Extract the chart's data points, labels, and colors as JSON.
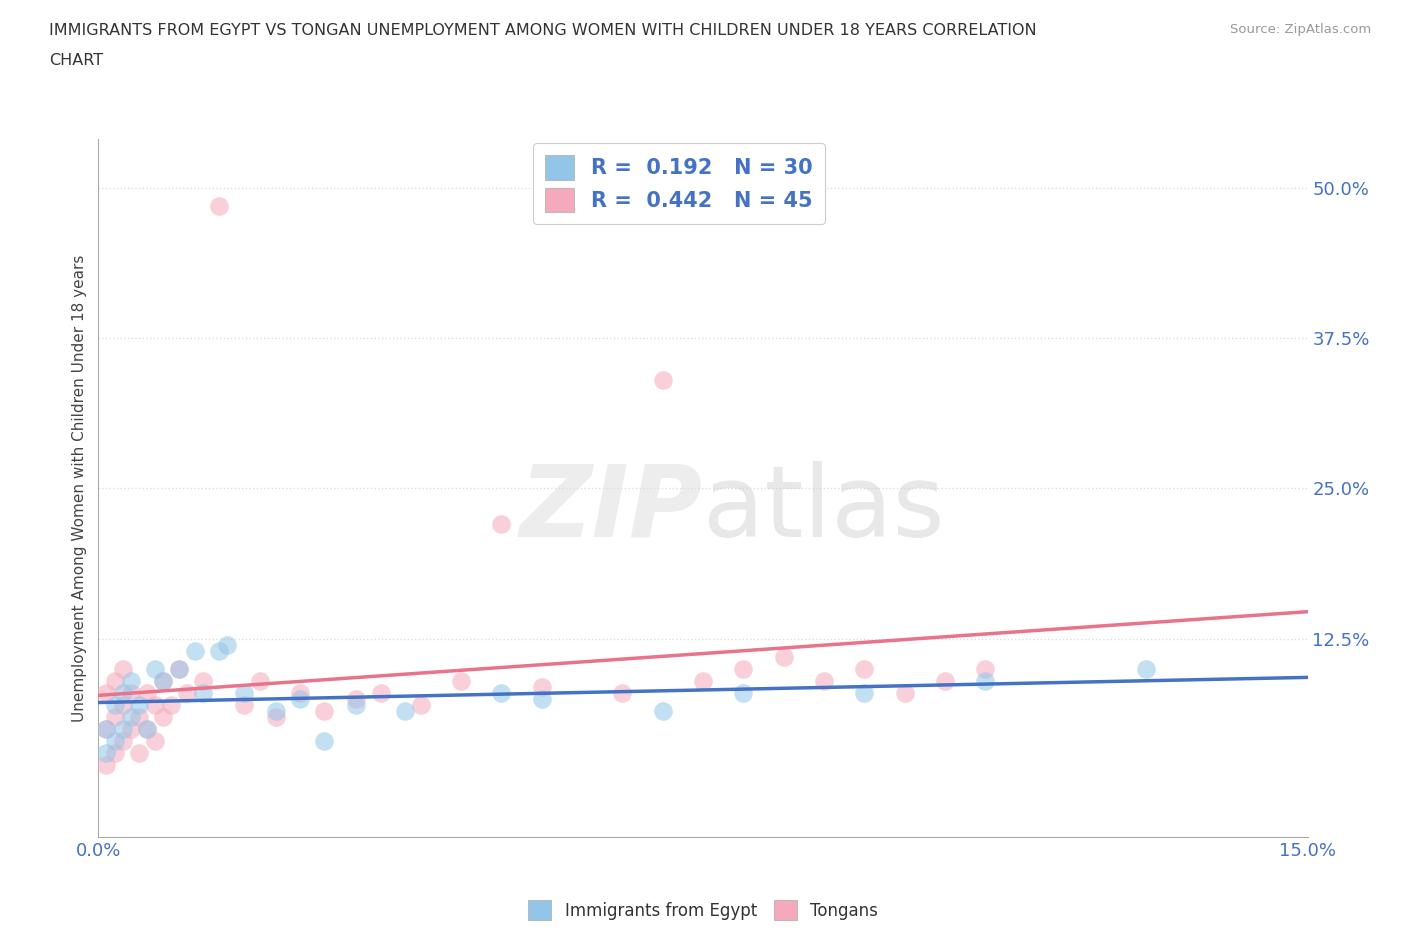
{
  "title_line1": "IMMIGRANTS FROM EGYPT VS TONGAN UNEMPLOYMENT AMONG WOMEN WITH CHILDREN UNDER 18 YEARS CORRELATION",
  "title_line2": "CHART",
  "source_text": "Source: ZipAtlas.com",
  "ylabel": "Unemployment Among Women with Children Under 18 years",
  "xlim": [
    0.0,
    0.15
  ],
  "ylim": [
    -0.04,
    0.54
  ],
  "xtick_labels": [
    "0.0%",
    "15.0%"
  ],
  "xtick_positions": [
    0.0,
    0.15
  ],
  "ytick_labels": [
    "12.5%",
    "25.0%",
    "37.5%",
    "50.0%"
  ],
  "ytick_positions": [
    0.125,
    0.25,
    0.375,
    0.5
  ],
  "blue_color": "#92C5E8",
  "pink_color": "#F5AABB",
  "blue_line_color": "#4472C4",
  "pink_line_color": "#E8738A",
  "axis_label_color": "#4472C4",
  "legend_r1": "0.192",
  "legend_n1": "30",
  "legend_r2": "0.442",
  "legend_n2": "45",
  "legend_label1": "Immigrants from Egypt",
  "legend_label2": "Tongans",
  "blue_x": [
    0.001,
    0.001,
    0.002,
    0.002,
    0.003,
    0.003,
    0.004,
    0.004,
    0.005,
    0.006,
    0.007,
    0.008,
    0.01,
    0.012,
    0.013,
    0.015,
    0.016,
    0.018,
    0.022,
    0.025,
    0.028,
    0.032,
    0.038,
    0.05,
    0.055,
    0.07,
    0.08,
    0.095,
    0.11,
    0.13
  ],
  "blue_y": [
    0.03,
    0.05,
    0.04,
    0.07,
    0.05,
    0.08,
    0.06,
    0.09,
    0.07,
    0.05,
    0.1,
    0.09,
    0.1,
    0.115,
    0.08,
    0.115,
    0.12,
    0.08,
    0.065,
    0.075,
    0.04,
    0.07,
    0.065,
    0.08,
    0.075,
    0.065,
    0.08,
    0.08,
    0.09,
    0.1
  ],
  "pink_x": [
    0.001,
    0.001,
    0.001,
    0.002,
    0.002,
    0.002,
    0.003,
    0.003,
    0.003,
    0.004,
    0.004,
    0.005,
    0.005,
    0.006,
    0.006,
    0.007,
    0.007,
    0.008,
    0.008,
    0.009,
    0.01,
    0.011,
    0.013,
    0.015,
    0.018,
    0.02,
    0.022,
    0.025,
    0.028,
    0.032,
    0.035,
    0.04,
    0.045,
    0.05,
    0.055,
    0.065,
    0.07,
    0.075,
    0.08,
    0.085,
    0.09,
    0.095,
    0.1,
    0.105,
    0.11
  ],
  "pink_y": [
    0.02,
    0.05,
    0.08,
    0.03,
    0.06,
    0.09,
    0.04,
    0.07,
    0.1,
    0.05,
    0.08,
    0.03,
    0.06,
    0.05,
    0.08,
    0.04,
    0.07,
    0.06,
    0.09,
    0.07,
    0.1,
    0.08,
    0.09,
    0.485,
    0.07,
    0.09,
    0.06,
    0.08,
    0.065,
    0.075,
    0.08,
    0.07,
    0.09,
    0.22,
    0.085,
    0.08,
    0.34,
    0.09,
    0.1,
    0.11,
    0.09,
    0.1,
    0.08,
    0.09,
    0.1
  ],
  "watermark_color": "#C8C8C8",
  "background_color": "#FFFFFF",
  "grid_color": "#DDDDDD",
  "title_fontsize": 11.5,
  "tick_fontsize": 13,
  "ylabel_fontsize": 11,
  "scatter_size": 180,
  "scatter_alpha": 0.55,
  "line_width": 2.5
}
